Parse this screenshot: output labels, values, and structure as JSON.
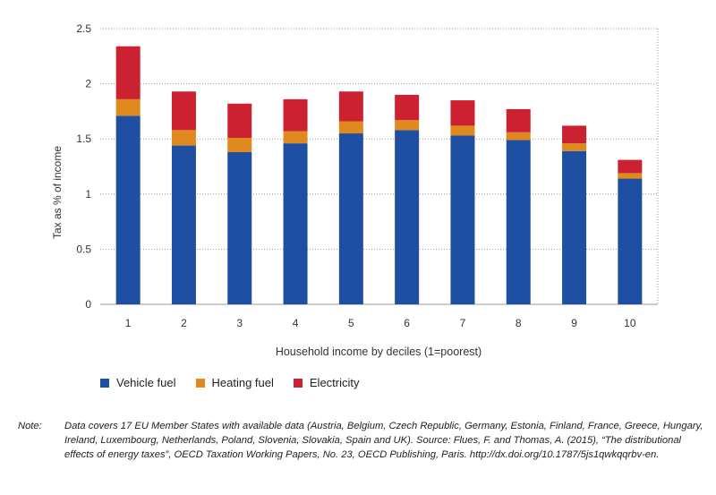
{
  "chart_data": {
    "type": "bar",
    "stacked": true,
    "categories": [
      "1",
      "2",
      "3",
      "4",
      "5",
      "6",
      "7",
      "8",
      "9",
      "10"
    ],
    "series": [
      {
        "name": "Vehicle fuel",
        "color": "#1f4fa3",
        "values": [
          1.71,
          1.44,
          1.38,
          1.46,
          1.55,
          1.58,
          1.53,
          1.49,
          1.39,
          1.14
        ]
      },
      {
        "name": "Heating fuel",
        "color": "#e0891e",
        "values": [
          0.15,
          0.14,
          0.13,
          0.11,
          0.11,
          0.09,
          0.09,
          0.07,
          0.07,
          0.05
        ]
      },
      {
        "name": "Electricity",
        "color": "#cc2130",
        "values": [
          0.48,
          0.35,
          0.31,
          0.29,
          0.27,
          0.23,
          0.23,
          0.21,
          0.16,
          0.12
        ]
      }
    ],
    "xlabel": "Household income by deciles (1=poorest)",
    "ylabel": "Tax as % of income",
    "ylim": [
      0,
      2.5
    ],
    "yticks": [
      0,
      0.5,
      1,
      1.5,
      2,
      2.5
    ],
    "ytick_labels": [
      "0",
      "0.5",
      "1",
      "1.5",
      "2",
      "2.5"
    ],
    "grid": true,
    "legend_position": "bottom-left"
  },
  "note": {
    "label": "Note:",
    "text": "Data covers 17 EU Member States with available data (Austria, Belgium, Czech Republic, Germany, Estonia, Finland, France, Greece, Hungary, Ireland, Luxembourg, Netherlands, Poland, Slovenia, Slovakia, Spain and UK). Source: Flues, F. and Thomas, A. (2015), “The distributional effects of energy taxes”, OECD Taxation Working Papers, No. 23, OECD Publishing, Paris. http://dx.doi.org/10.1787/5js1qwkqqrbv-en."
  }
}
